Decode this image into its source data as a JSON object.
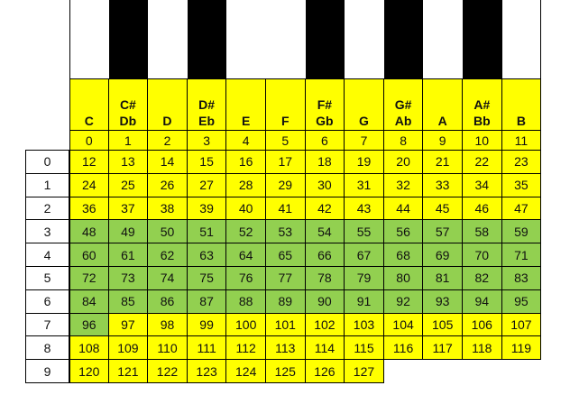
{
  "header": {
    "columns": [
      {
        "sharp": "",
        "flat": "C",
        "index": "0"
      },
      {
        "sharp": "C#",
        "flat": "Db",
        "index": "1"
      },
      {
        "sharp": "",
        "flat": "D",
        "index": "2"
      },
      {
        "sharp": "D#",
        "flat": "Eb",
        "index": "3"
      },
      {
        "sharp": "",
        "flat": "E",
        "index": "4"
      },
      {
        "sharp": "",
        "flat": "F",
        "index": "5"
      },
      {
        "sharp": "F#",
        "flat": "Gb",
        "index": "6"
      },
      {
        "sharp": "",
        "flat": "G",
        "index": "7"
      },
      {
        "sharp": "G#",
        "flat": "Ab",
        "index": "8"
      },
      {
        "sharp": "",
        "flat": "A",
        "index": "9"
      },
      {
        "sharp": "A#",
        "flat": "Bb",
        "index": "10"
      },
      {
        "sharp": "",
        "flat": "B",
        "index": "11"
      }
    ]
  },
  "keyboard": [
    "white",
    "black",
    "white",
    "black",
    "white",
    "white",
    "black",
    "white",
    "black",
    "white",
    "black",
    "white"
  ],
  "rows": [
    {
      "octave": "0",
      "values": [
        "12",
        "13",
        "14",
        "15",
        "16",
        "17",
        "18",
        "19",
        "20",
        "21",
        "22",
        "23"
      ],
      "highlight": [
        0,
        0,
        0,
        0,
        0,
        0,
        0,
        0,
        0,
        0,
        0,
        0
      ]
    },
    {
      "octave": "1",
      "values": [
        "24",
        "25",
        "26",
        "27",
        "28",
        "29",
        "30",
        "31",
        "32",
        "33",
        "34",
        "35"
      ],
      "highlight": [
        0,
        0,
        0,
        0,
        0,
        0,
        0,
        0,
        0,
        0,
        0,
        0
      ]
    },
    {
      "octave": "2",
      "values": [
        "36",
        "37",
        "38",
        "39",
        "40",
        "41",
        "42",
        "43",
        "44",
        "45",
        "46",
        "47"
      ],
      "highlight": [
        0,
        0,
        0,
        0,
        0,
        0,
        0,
        0,
        0,
        0,
        0,
        0
      ]
    },
    {
      "octave": "3",
      "values": [
        "48",
        "49",
        "50",
        "51",
        "52",
        "53",
        "54",
        "55",
        "56",
        "57",
        "58",
        "59"
      ],
      "highlight": [
        1,
        1,
        1,
        1,
        1,
        1,
        1,
        1,
        1,
        1,
        1,
        1
      ]
    },
    {
      "octave": "4",
      "values": [
        "60",
        "61",
        "62",
        "63",
        "64",
        "65",
        "66",
        "67",
        "68",
        "69",
        "70",
        "71"
      ],
      "highlight": [
        1,
        1,
        1,
        1,
        1,
        1,
        1,
        1,
        1,
        1,
        1,
        1
      ]
    },
    {
      "octave": "5",
      "values": [
        "72",
        "73",
        "74",
        "75",
        "76",
        "77",
        "78",
        "79",
        "80",
        "81",
        "82",
        "83"
      ],
      "highlight": [
        1,
        1,
        1,
        1,
        1,
        1,
        1,
        1,
        1,
        1,
        1,
        1
      ]
    },
    {
      "octave": "6",
      "values": [
        "84",
        "85",
        "86",
        "87",
        "88",
        "89",
        "90",
        "91",
        "92",
        "93",
        "94",
        "95"
      ],
      "highlight": [
        1,
        1,
        1,
        1,
        1,
        1,
        1,
        1,
        1,
        1,
        1,
        1
      ]
    },
    {
      "octave": "7",
      "values": [
        "96",
        "97",
        "98",
        "99",
        "100",
        "101",
        "102",
        "103",
        "104",
        "105",
        "106",
        "107"
      ],
      "highlight": [
        1,
        0,
        0,
        0,
        0,
        0,
        0,
        0,
        0,
        0,
        0,
        0
      ]
    },
    {
      "octave": "8",
      "values": [
        "108",
        "109",
        "110",
        "111",
        "112",
        "113",
        "114",
        "115",
        "116",
        "117",
        "118",
        "119"
      ],
      "highlight": [
        0,
        0,
        0,
        0,
        0,
        0,
        0,
        0,
        0,
        0,
        0,
        0
      ]
    },
    {
      "octave": "9",
      "values": [
        "120",
        "121",
        "122",
        "123",
        "124",
        "125",
        "126",
        "127",
        "",
        "",
        "",
        ""
      ],
      "highlight": [
        0,
        0,
        0,
        0,
        0,
        0,
        0,
        0,
        0,
        0,
        0,
        0
      ]
    }
  ],
  "colors": {
    "yellow": "#ffff00",
    "green": "#92d050",
    "black_key": "#000000",
    "white_key": "#ffffff"
  }
}
